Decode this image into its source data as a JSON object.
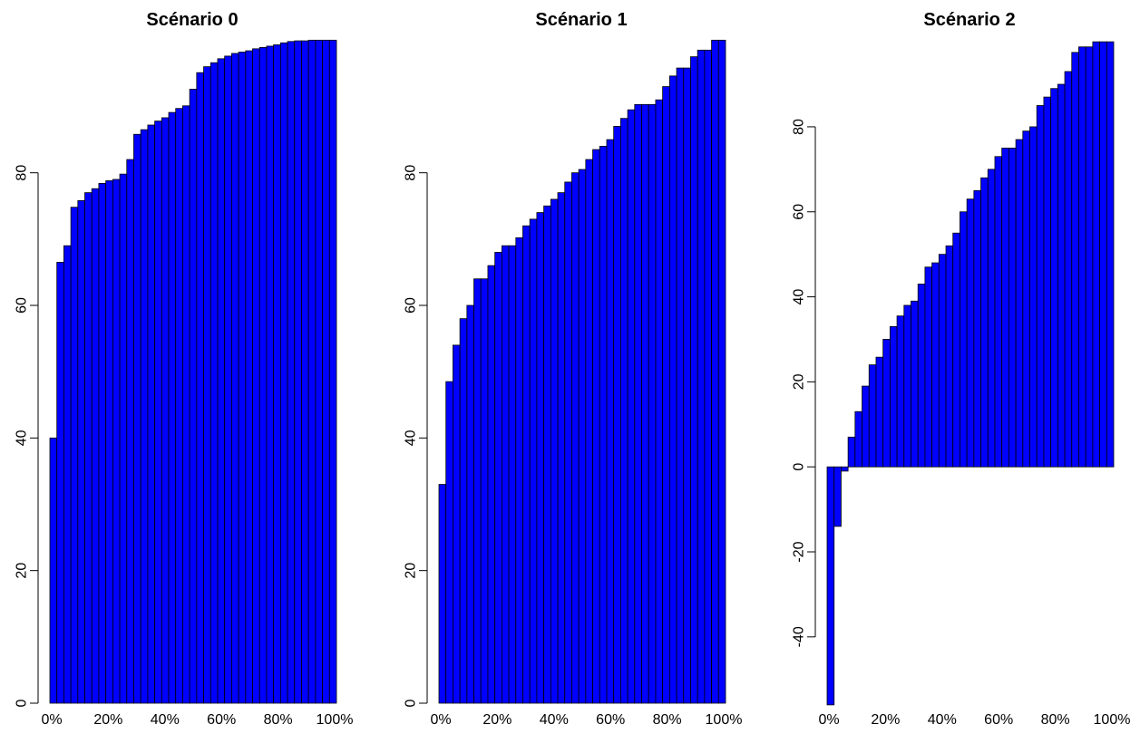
{
  "chart_data": [
    {
      "type": "bar",
      "title": "Scénario 0",
      "xlabel": "",
      "ylabel": "",
      "x_tick_labels": [
        "0%",
        "20%",
        "40%",
        "60%",
        "80%",
        "100%"
      ],
      "y_ticks": [
        0,
        20,
        40,
        60,
        80
      ],
      "y_tick_labels": [
        "0",
        "20",
        "40",
        "60",
        "80"
      ],
      "ylim": [
        0,
        99.5
      ],
      "bar_color": "#0000ff",
      "values": [
        40,
        66.5,
        69,
        74.8,
        75.8,
        77,
        77.6,
        78.4,
        78.8,
        79,
        79.8,
        82,
        85.8,
        86.5,
        87.2,
        87.8,
        88.3,
        89.1,
        89.7,
        90.1,
        92.6,
        95.1,
        96,
        96.6,
        97.2,
        97.6,
        98,
        98.2,
        98.4,
        98.7,
        98.9,
        99.1,
        99.3,
        99.6,
        99.8,
        99.9,
        99.9,
        100,
        100,
        100,
        100
      ]
    },
    {
      "type": "bar",
      "title": "Scénario 1",
      "xlabel": "",
      "ylabel": "",
      "x_tick_labels": [
        "0%",
        "20%",
        "40%",
        "60%",
        "80%",
        "100%"
      ],
      "y_ticks": [
        0,
        20,
        40,
        60,
        80
      ],
      "y_tick_labels": [
        "0",
        "20",
        "40",
        "60",
        "80"
      ],
      "ylim": [
        0,
        99.5
      ],
      "bar_color": "#0000ff",
      "values": [
        33,
        48.5,
        54,
        58,
        60,
        64,
        64,
        66,
        68,
        69,
        69,
        70.2,
        72,
        73,
        74,
        75,
        76,
        77,
        78.6,
        80,
        80.5,
        82,
        83.5,
        84,
        85,
        87,
        88.2,
        89.5,
        90.3,
        90.3,
        90.3,
        91,
        93,
        94.6,
        95.8,
        95.8,
        97.5,
        98.5,
        98.5,
        100,
        100
      ]
    },
    {
      "type": "bar",
      "title": "Scénario 2",
      "xlabel": "",
      "ylabel": "",
      "x_tick_labels": [
        "0%",
        "20%",
        "40%",
        "60%",
        "80%",
        "100%"
      ],
      "y_ticks": [
        -40,
        -20,
        0,
        20,
        40,
        60,
        80
      ],
      "y_tick_labels": [
        "-40",
        "-20",
        "0",
        "20",
        "40",
        "60",
        "80"
      ],
      "ylim": [
        -55.6,
        99.6
      ],
      "bar_color": "#0000ff",
      "values": [
        -56,
        -14,
        -1,
        7,
        13,
        19,
        24,
        25.8,
        30,
        33,
        35.5,
        38,
        39,
        43,
        47,
        48,
        50,
        52,
        55,
        60,
        63,
        65,
        68,
        70,
        73,
        75,
        75,
        77,
        79,
        80,
        85,
        87,
        89,
        90,
        93,
        97.5,
        98.8,
        98.8,
        100,
        100,
        100
      ]
    }
  ]
}
